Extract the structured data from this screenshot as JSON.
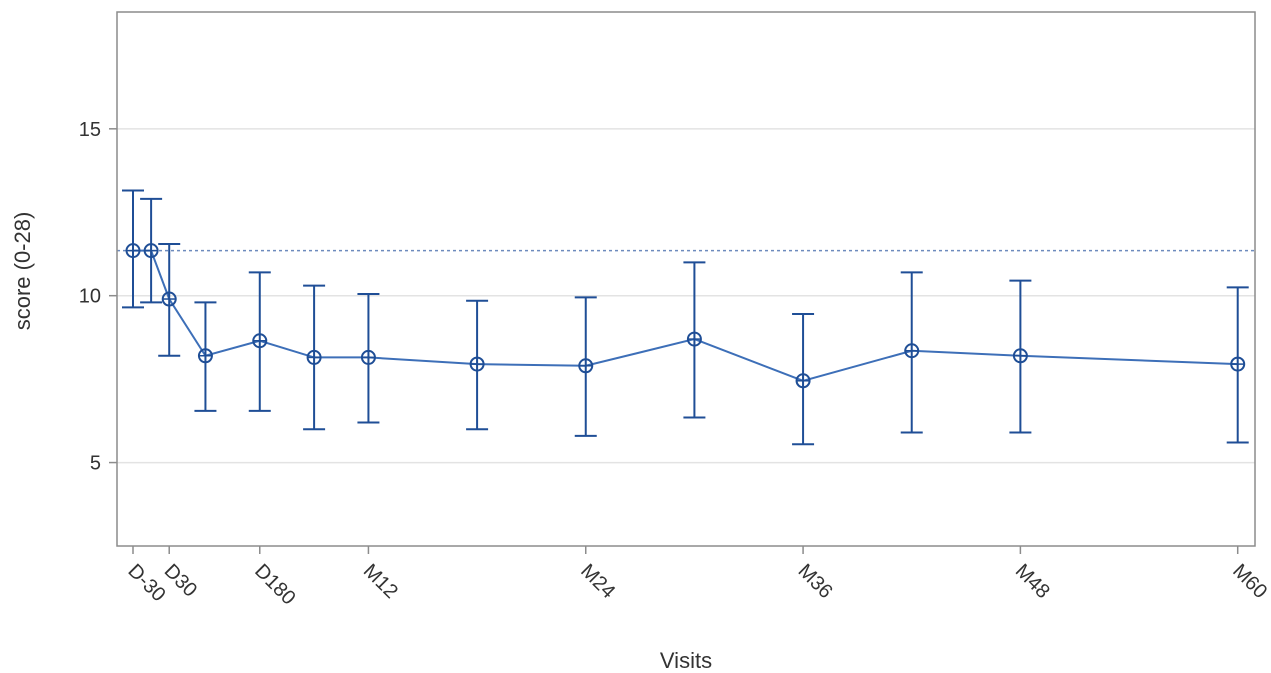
{
  "chart_data": {
    "type": "line",
    "xlabel": "Visits",
    "ylabel": "score (0-28)",
    "ylim": [
      2.5,
      18.5
    ],
    "xlim": [
      -1.2,
      60.8
    ],
    "yticks": [
      5,
      10,
      15
    ],
    "xticks": [
      {
        "pos": 0,
        "label": "D-30"
      },
      {
        "pos": 2,
        "label": "D30"
      },
      {
        "pos": 7,
        "label": "D180"
      },
      {
        "pos": 13,
        "label": "M12"
      },
      {
        "pos": 25,
        "label": "M24"
      },
      {
        "pos": 37,
        "label": "M36"
      },
      {
        "pos": 49,
        "label": "M48"
      },
      {
        "pos": 61,
        "label": "M60"
      }
    ],
    "grid": true,
    "reference_line": 11.35,
    "series": [
      {
        "color": "#1f4e96",
        "points": [
          {
            "x": 0,
            "y": 11.35,
            "lower": 9.65,
            "upper": 13.15
          },
          {
            "x": 1,
            "y": 11.35,
            "lower": 9.8,
            "upper": 12.9
          },
          {
            "x": 2,
            "y": 9.9,
            "lower": 8.2,
            "upper": 11.55
          },
          {
            "x": 4,
            "y": 8.2,
            "lower": 6.55,
            "upper": 9.8
          },
          {
            "x": 7,
            "y": 8.65,
            "lower": 6.55,
            "upper": 10.7
          },
          {
            "x": 10,
            "y": 8.15,
            "lower": 6.0,
            "upper": 10.3
          },
          {
            "x": 13,
            "y": 8.15,
            "lower": 6.2,
            "upper": 10.05
          },
          {
            "x": 19,
            "y": 7.95,
            "lower": 6.0,
            "upper": 9.85
          },
          {
            "x": 25,
            "y": 7.9,
            "lower": 5.8,
            "upper": 9.95
          },
          {
            "x": 31,
            "y": 8.7,
            "lower": 6.35,
            "upper": 11.0
          },
          {
            "x": 37,
            "y": 7.45,
            "lower": 5.55,
            "upper": 9.45
          },
          {
            "x": 43,
            "y": 8.35,
            "lower": 5.9,
            "upper": 10.7
          },
          {
            "x": 49,
            "y": 8.2,
            "lower": 5.9,
            "upper": 10.45
          },
          {
            "x": 61,
            "y": 7.95,
            "lower": 5.6,
            "upper": 10.25
          }
        ]
      }
    ]
  }
}
